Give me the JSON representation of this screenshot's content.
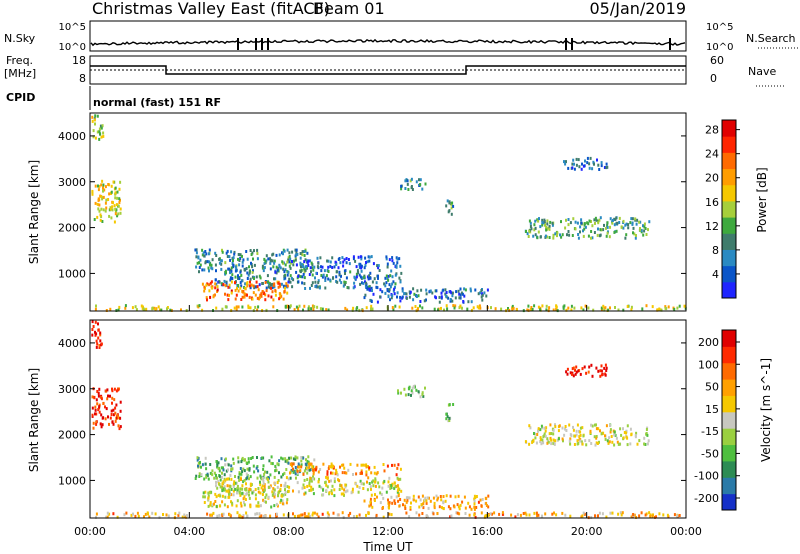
{
  "header": {
    "station": "Christmas Valley East (fitACF)",
    "beam": "Beam 01",
    "date": "05/Jan/2019"
  },
  "panels": {
    "nsky_label": "N.Sky",
    "nsearch_label": "N.Search",
    "freq_label": "Freq.",
    "freq_unit": "[MHz]",
    "nave_label": "Nave",
    "cpid_label": "CPID",
    "cpid_value": "normal (fast) 151 RF",
    "noise_ticks": [
      "10^5",
      "10^0"
    ],
    "freq_ticks": [
      "18",
      "8"
    ],
    "nave_ticks": [
      "60",
      "0"
    ]
  },
  "chart_data": [
    {
      "type": "heatmap",
      "title": "",
      "xlabel": "",
      "ylabel": "Slant Range [km]",
      "x_range_hours": [
        0,
        24
      ],
      "x_ticks": [
        "00:00",
        "04:00",
        "08:00",
        "12:00",
        "16:00",
        "20:00",
        "00:00"
      ],
      "ylim": [
        180,
        4500
      ],
      "y_ticks": [
        1000,
        2000,
        3000,
        4000
      ],
      "colorbar_label": "Power [dB]",
      "colorbar_ticks": [
        "4",
        "8",
        "12",
        "16",
        "20",
        "24",
        "28"
      ],
      "colorbar_colors": [
        "#1f25ff",
        "#0a55c8",
        "#2a8ac2",
        "#3f7c6c",
        "#3ea93e",
        "#a6cf3b",
        "#f5c800",
        "#ff9d00",
        "#ff6a00",
        "#ff2500",
        "#e00000"
      ],
      "regions": [
        {
          "t": [
            0.05,
            1.2
          ],
          "r": [
            2150,
            3050
          ],
          "level": 0.55
        },
        {
          "t": [
            0.05,
            0.5
          ],
          "r": [
            3900,
            4500
          ],
          "level": 0.5
        },
        {
          "t": [
            4.2,
            9.0
          ],
          "r": [
            1050,
            1550
          ],
          "level": 0.3
        },
        {
          "t": [
            5.0,
            12.5
          ],
          "r": [
            700,
            1100
          ],
          "level": 0.25
        },
        {
          "t": [
            4.5,
            8.0
          ],
          "r": [
            450,
            850
          ],
          "level": 0.75
        },
        {
          "t": [
            0.0,
            24.0
          ],
          "r": [
            220,
            330
          ],
          "level": 0.55
        },
        {
          "t": [
            8.0,
            12.5
          ],
          "r": [
            1150,
            1400
          ],
          "level": 0.15
        },
        {
          "t": [
            12.3,
            13.5
          ],
          "r": [
            2850,
            3100
          ],
          "level": 0.3
        },
        {
          "t": [
            14.3,
            14.6
          ],
          "r": [
            2300,
            2700
          ],
          "level": 0.35
        },
        {
          "t": [
            17.5,
            22.5
          ],
          "r": [
            1800,
            2250
          ],
          "level": 0.35
        },
        {
          "t": [
            19.0,
            20.8
          ],
          "r": [
            3300,
            3550
          ],
          "level": 0.2
        },
        {
          "t": [
            11.0,
            16.0
          ],
          "r": [
            400,
            700
          ],
          "level": 0.2
        }
      ]
    },
    {
      "type": "heatmap",
      "title": "",
      "xlabel": "Time UT",
      "ylabel": "Slant Range [km]",
      "x_range_hours": [
        0,
        24
      ],
      "x_ticks": [
        "00:00",
        "04:00",
        "08:00",
        "12:00",
        "16:00",
        "20:00",
        "00:00"
      ],
      "ylim": [
        180,
        4500
      ],
      "y_ticks": [
        1000,
        2000,
        3000,
        4000
      ],
      "colorbar_label": "Velocity [m s^-1]",
      "colorbar_ticks": [
        "200",
        "100",
        "50",
        "15",
        "-15",
        "-50",
        "-100",
        "-200"
      ],
      "colorbar_colors": [
        "#1530c8",
        "#2a7aa8",
        "#2d8c54",
        "#4fbf3f",
        "#9ad040",
        "#c8c8c0",
        "#f5c800",
        "#ffa000",
        "#ff6a00",
        "#ff2a00",
        "#e00000"
      ],
      "regions": [
        {
          "t": [
            0.05,
            1.2
          ],
          "r": [
            2150,
            3050
          ],
          "level": 0.9
        },
        {
          "t": [
            0.05,
            0.5
          ],
          "r": [
            3900,
            4500
          ],
          "level": 0.95
        },
        {
          "t": [
            4.2,
            9.0
          ],
          "r": [
            1050,
            1550
          ],
          "level": 0.3
        },
        {
          "t": [
            5.0,
            12.5
          ],
          "r": [
            700,
            1100
          ],
          "level": 0.5
        },
        {
          "t": [
            4.5,
            8.0
          ],
          "r": [
            450,
            850
          ],
          "level": 0.5
        },
        {
          "t": [
            0.0,
            24.0
          ],
          "r": [
            220,
            330
          ],
          "level": 0.65
        },
        {
          "t": [
            8.0,
            12.5
          ],
          "r": [
            1150,
            1400
          ],
          "level": 0.7
        },
        {
          "t": [
            12.3,
            13.5
          ],
          "r": [
            2850,
            3100
          ],
          "level": 0.35
        },
        {
          "t": [
            14.3,
            14.6
          ],
          "r": [
            2300,
            2700
          ],
          "level": 0.35
        },
        {
          "t": [
            17.5,
            22.5
          ],
          "r": [
            1800,
            2250
          ],
          "level": 0.5
        },
        {
          "t": [
            19.0,
            20.8
          ],
          "r": [
            3300,
            3550
          ],
          "level": 0.95
        },
        {
          "t": [
            11.0,
            16.0
          ],
          "r": [
            400,
            700
          ],
          "level": 0.65
        }
      ]
    }
  ]
}
